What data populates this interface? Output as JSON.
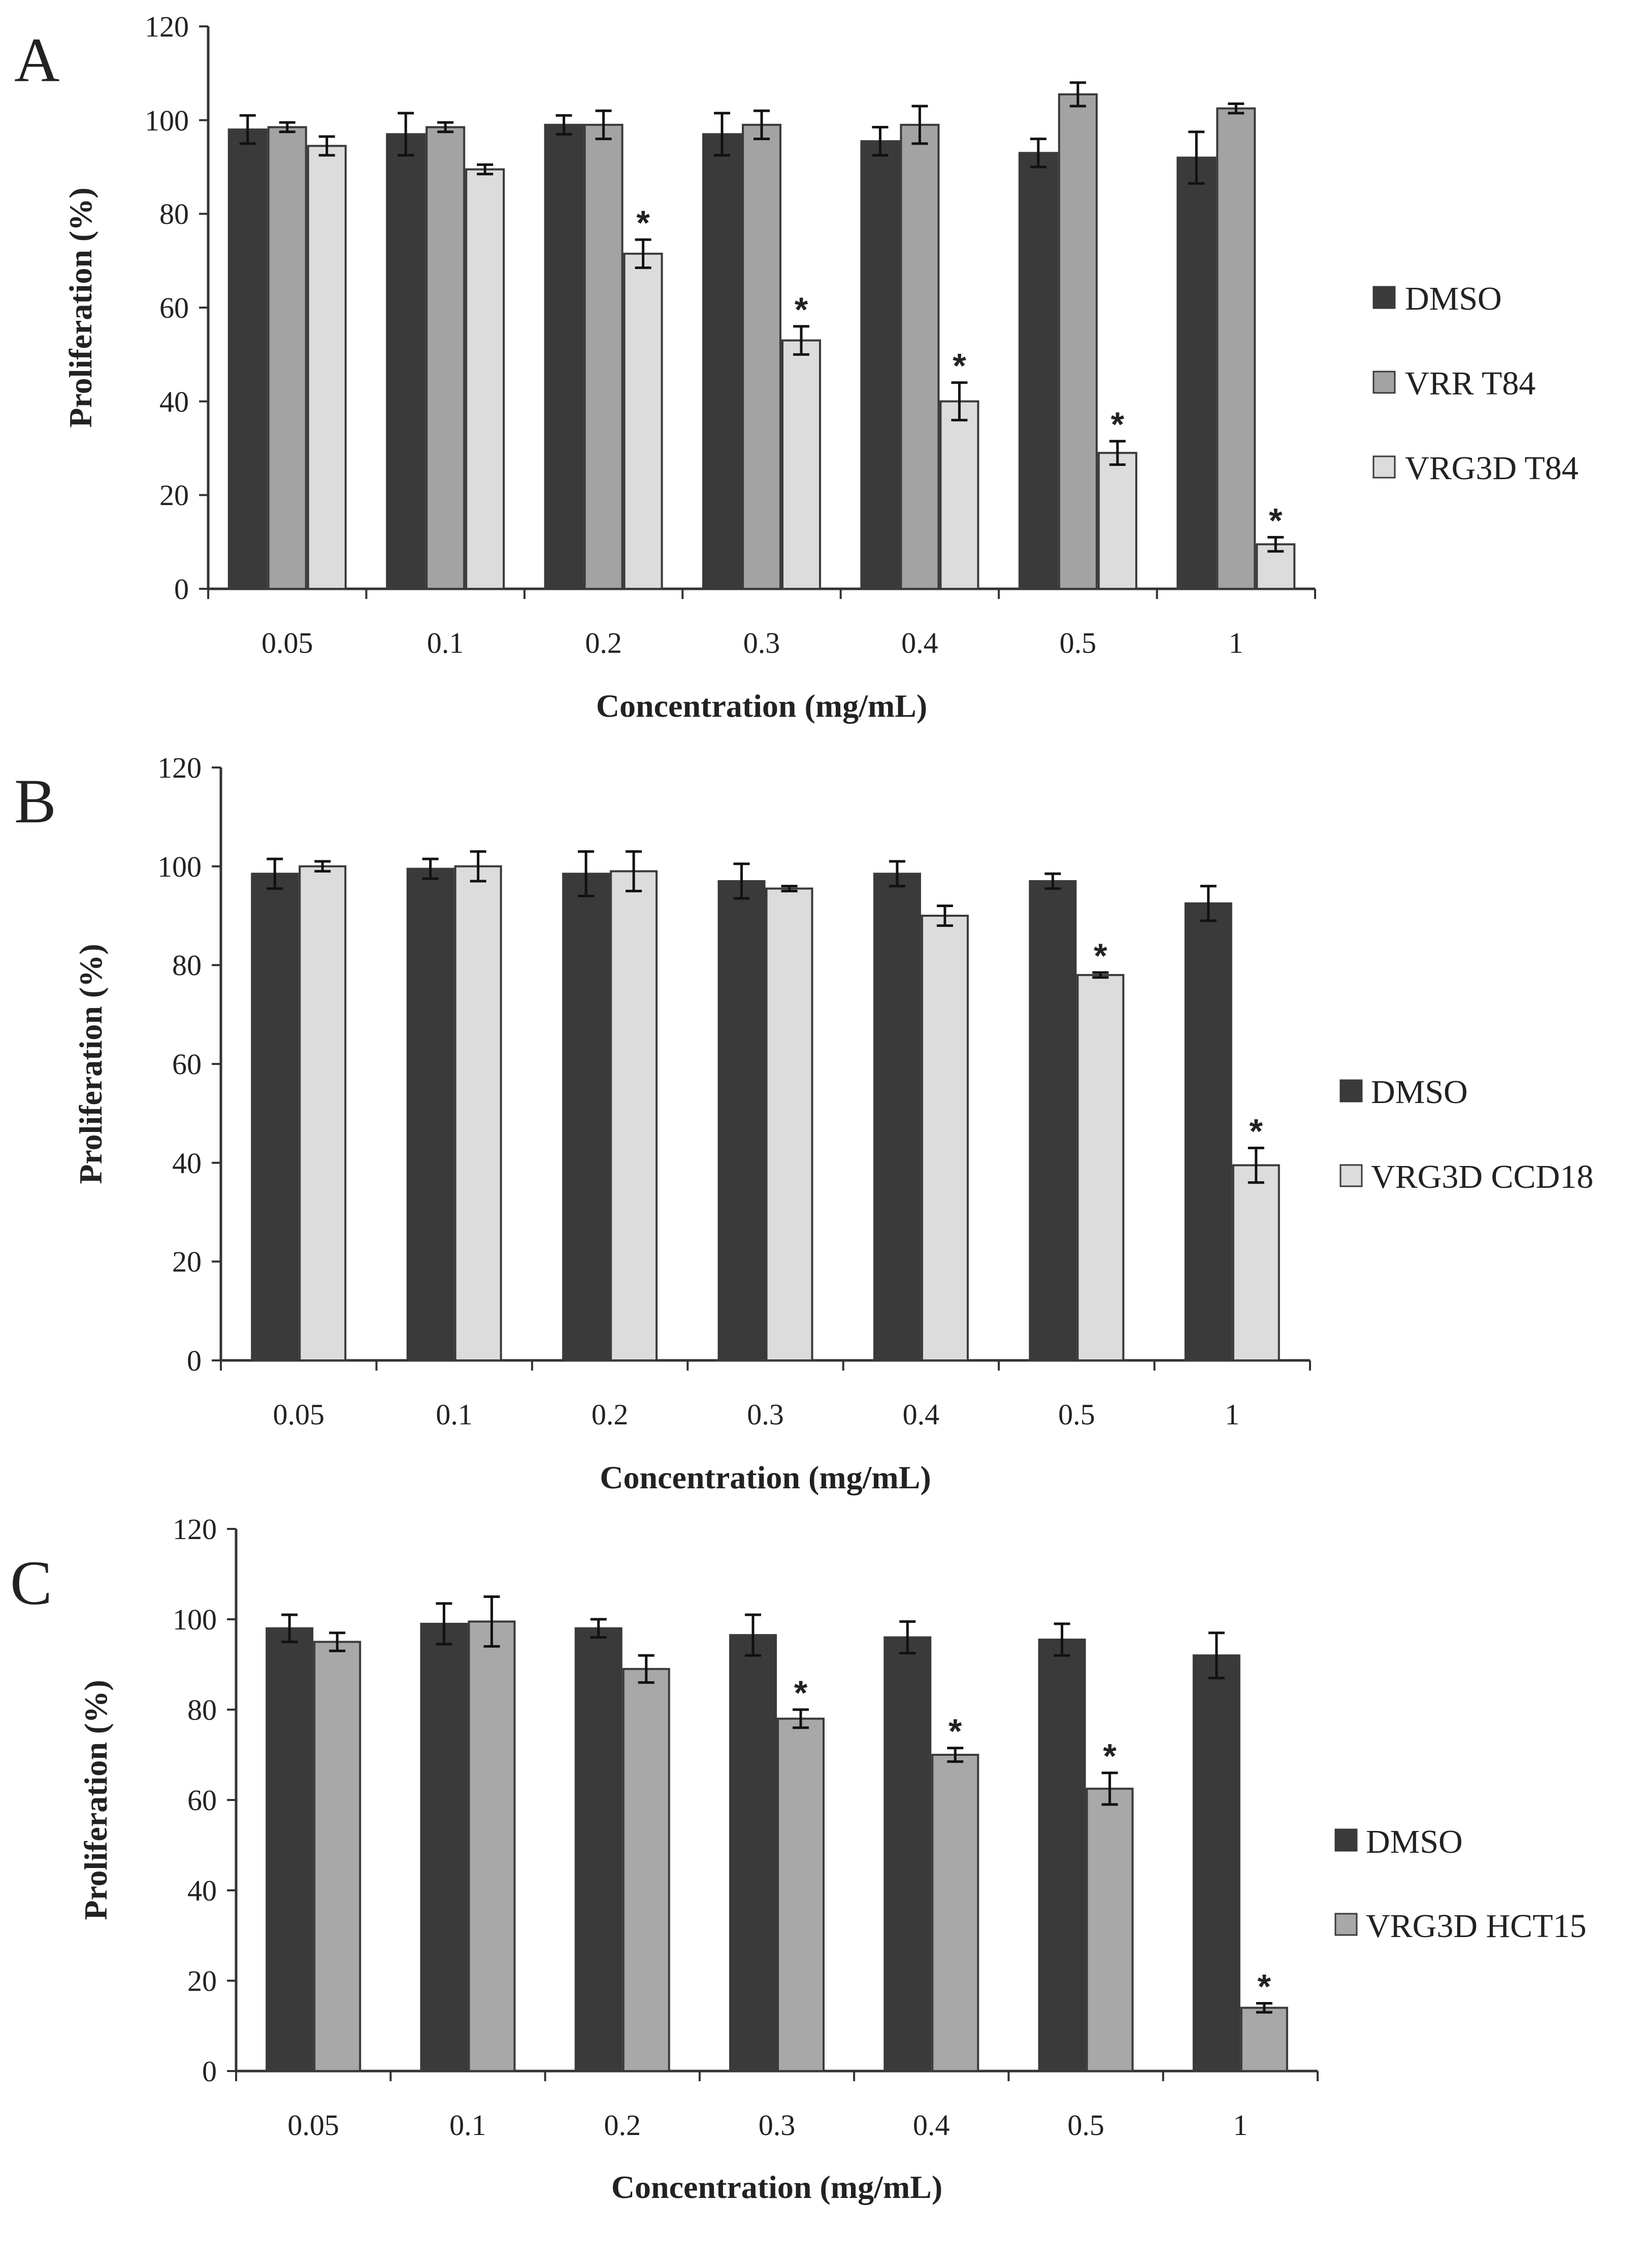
{
  "colors": {
    "dmso": "#3a3a3a",
    "vrr": "#a3a3a3",
    "vrg3d_light": "#dcdcdc",
    "vrg3d_mid": "#a8a8a8",
    "bar_stroke": "#3a3a3a",
    "axis": "#333333",
    "text": "#222222"
  },
  "chart_data": [
    {
      "type": "bar",
      "panel": "A",
      "categories": [
        "0.05",
        "0.1",
        "0.2",
        "0.3",
        "0.4",
        "0.5",
        "1"
      ],
      "xlabel": "Concentration (mg/mL)",
      "ylabel": "Proliferation (%)",
      "ylim": [
        0,
        120
      ],
      "yticks": [
        "0",
        "20",
        "40",
        "60",
        "80",
        "100",
        "120"
      ],
      "grid": false,
      "legend_position": "right",
      "series": [
        {
          "name": "DMSO",
          "color_key": "dmso",
          "values": [
            98,
            97,
            99,
            97,
            95.5,
            93,
            92
          ],
          "errors": [
            3,
            4.5,
            2,
            4.5,
            3,
            3,
            5.5
          ],
          "significant": [
            false,
            false,
            false,
            false,
            false,
            false,
            false
          ]
        },
        {
          "name": "VRR T84",
          "color_key": "vrr",
          "values": [
            98.5,
            98.5,
            99,
            99,
            99,
            105.5,
            102.5
          ],
          "errors": [
            1,
            1,
            3,
            3,
            4,
            2.5,
            1
          ],
          "significant": [
            false,
            false,
            false,
            false,
            false,
            false,
            false
          ]
        },
        {
          "name": "VRG3D T84",
          "color_key": "vrg3d_light",
          "values": [
            94.5,
            89.5,
            71.5,
            53,
            40,
            29,
            9.5
          ],
          "errors": [
            2,
            1,
            3,
            3,
            4,
            2.5,
            1.5
          ],
          "significant": [
            false,
            false,
            true,
            true,
            true,
            true,
            true
          ]
        }
      ],
      "significance_mark": "*"
    },
    {
      "type": "bar",
      "panel": "B",
      "categories": [
        "0.05",
        "0.1",
        "0.2",
        "0.3",
        "0.4",
        "0.5",
        "1"
      ],
      "xlabel": "Concentration (mg/mL)",
      "ylabel": "Proliferation (%)",
      "ylim": [
        0,
        120
      ],
      "yticks": [
        "0",
        "20",
        "40",
        "60",
        "80",
        "100",
        "120"
      ],
      "grid": false,
      "legend_position": "right",
      "series": [
        {
          "name": "DMSO",
          "color_key": "dmso",
          "values": [
            98.5,
            99.5,
            98.5,
            97,
            98.5,
            97,
            92.5
          ],
          "errors": [
            3,
            2,
            4.5,
            3.5,
            2.5,
            1.5,
            3.5
          ],
          "significant": [
            false,
            false,
            false,
            false,
            false,
            false,
            false
          ]
        },
        {
          "name": "VRG3D CCD18",
          "color_key": "vrg3d_light",
          "values": [
            100,
            100,
            99,
            95.5,
            90,
            78,
            39.5
          ],
          "errors": [
            1,
            3,
            4,
            0.5,
            2,
            0.5,
            3.5
          ],
          "significant": [
            false,
            false,
            false,
            false,
            false,
            true,
            true
          ]
        }
      ],
      "significance_mark": "*"
    },
    {
      "type": "bar",
      "panel": "C",
      "categories": [
        "0.05",
        "0.1",
        "0.2",
        "0.3",
        "0.4",
        "0.5",
        "1"
      ],
      "xlabel": "Concentration (mg/mL)",
      "ylabel": "Proliferation (%)",
      "ylim": [
        0,
        120
      ],
      "yticks": [
        "0",
        "20",
        "40",
        "60",
        "80",
        "100",
        "120"
      ],
      "grid": false,
      "legend_position": "right",
      "series": [
        {
          "name": "DMSO",
          "color_key": "dmso",
          "values": [
            98,
            99,
            98,
            96.5,
            96,
            95.5,
            92
          ],
          "errors": [
            3,
            4.5,
            2,
            4.5,
            3.5,
            3.5,
            5
          ],
          "significant": [
            false,
            false,
            false,
            false,
            false,
            false,
            false
          ]
        },
        {
          "name": "VRG3D HCT15",
          "color_key": "vrg3d_mid",
          "values": [
            95,
            99.5,
            89,
            78,
            70,
            62.5,
            14
          ],
          "errors": [
            2,
            5.5,
            3,
            2,
            1.5,
            3.5,
            1
          ],
          "significant": [
            false,
            false,
            false,
            true,
            true,
            true,
            true
          ]
        }
      ],
      "significance_mark": "*"
    }
  ]
}
